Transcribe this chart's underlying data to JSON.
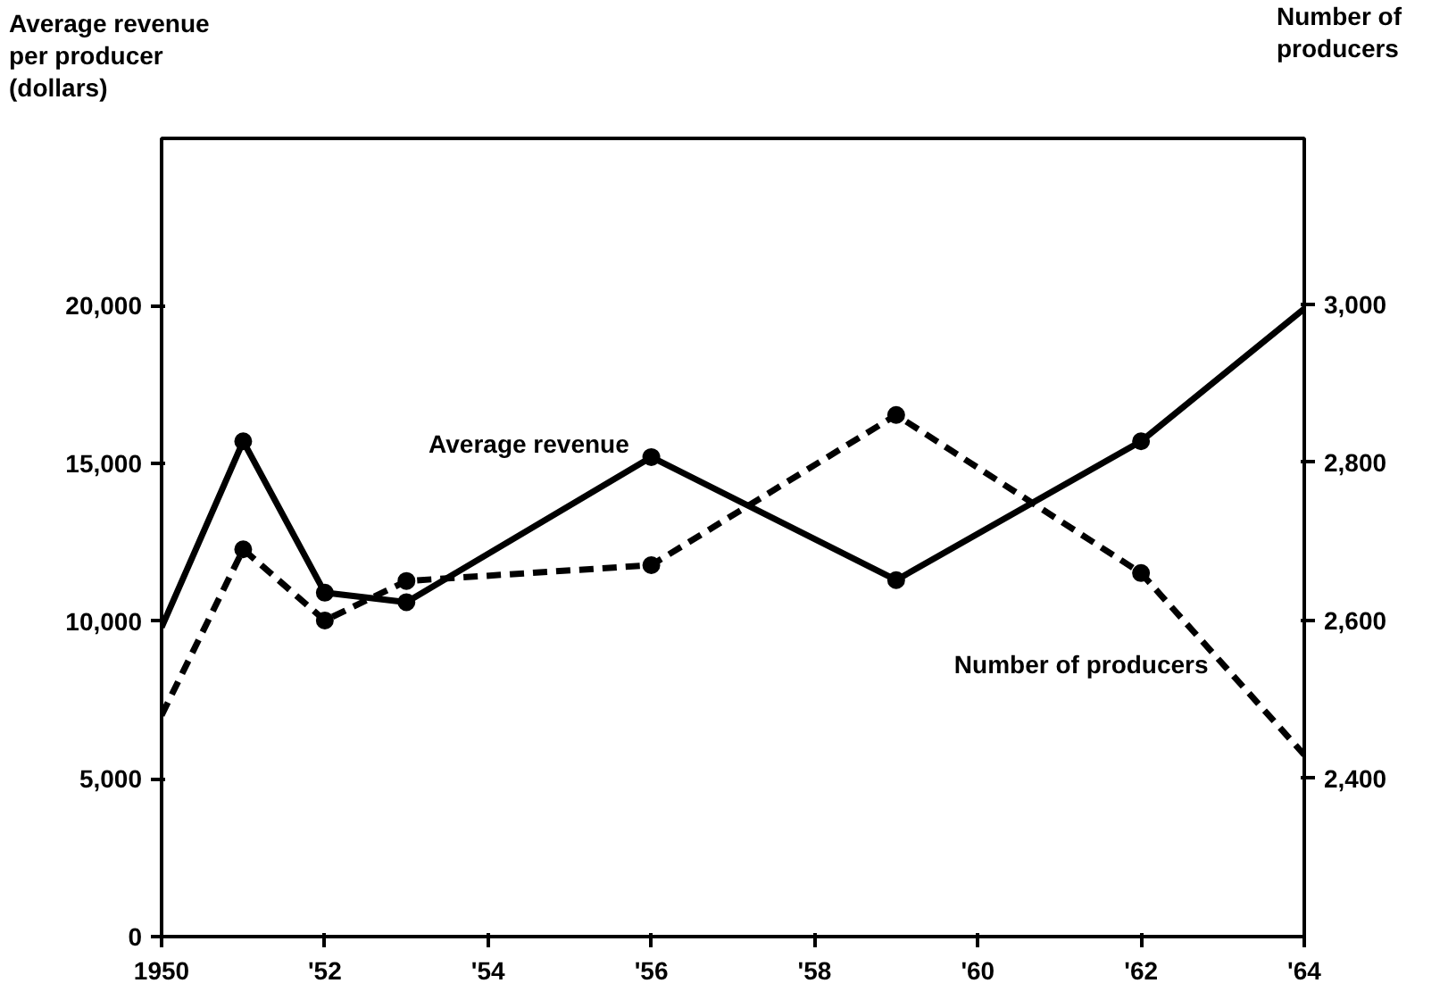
{
  "chart_data": {
    "type": "line",
    "ylabel": "Average revenue\nper producer\n(dollars)",
    "y2label": "Number of\nproducers",
    "x": [
      1950,
      1951,
      1952,
      1953,
      1956,
      1959,
      1962,
      1964
    ],
    "xlim": [
      1950,
      1964
    ],
    "xticks": [
      {
        "value": 1950,
        "label": "1950"
      },
      {
        "value": 1952,
        "label": "'52"
      },
      {
        "value": 1954,
        "label": "'54"
      },
      {
        "value": 1956,
        "label": "'56"
      },
      {
        "value": 1958,
        "label": "'58"
      },
      {
        "value": 1960,
        "label": "'60"
      },
      {
        "value": 1962,
        "label": "'62"
      },
      {
        "value": 1964,
        "label": "'64"
      }
    ],
    "ylim": [
      0,
      25300
    ],
    "yticks": [
      {
        "value": 0,
        "label": "0"
      },
      {
        "value": 5000,
        "label": "5,000"
      },
      {
        "value": 10000,
        "label": "10,000"
      },
      {
        "value": 15000,
        "label": "15,000"
      },
      {
        "value": 20000,
        "label": "20,000"
      }
    ],
    "y2lim": [
      2200,
      3210
    ],
    "y2ticks": [
      {
        "value": 2400,
        "label": "2,400"
      },
      {
        "value": 2600,
        "label": "2,600"
      },
      {
        "value": 2800,
        "label": "2,800"
      },
      {
        "value": 3000,
        "label": "3,000"
      }
    ],
    "series": [
      {
        "name": "Average revenue",
        "color": "#000000",
        "line_style": "solid",
        "values": [
          9800,
          15700,
          10900,
          10600,
          15200,
          11300,
          15700,
          19900
        ]
      },
      {
        "name": "Number of producers",
        "color": "#000000",
        "line_style": "dashed",
        "axis": "y2",
        "values": [
          2480,
          2690,
          2600,
          2650,
          2670,
          2860,
          2660,
          2430
        ]
      }
    ],
    "marker": "circle",
    "grid": false
  }
}
